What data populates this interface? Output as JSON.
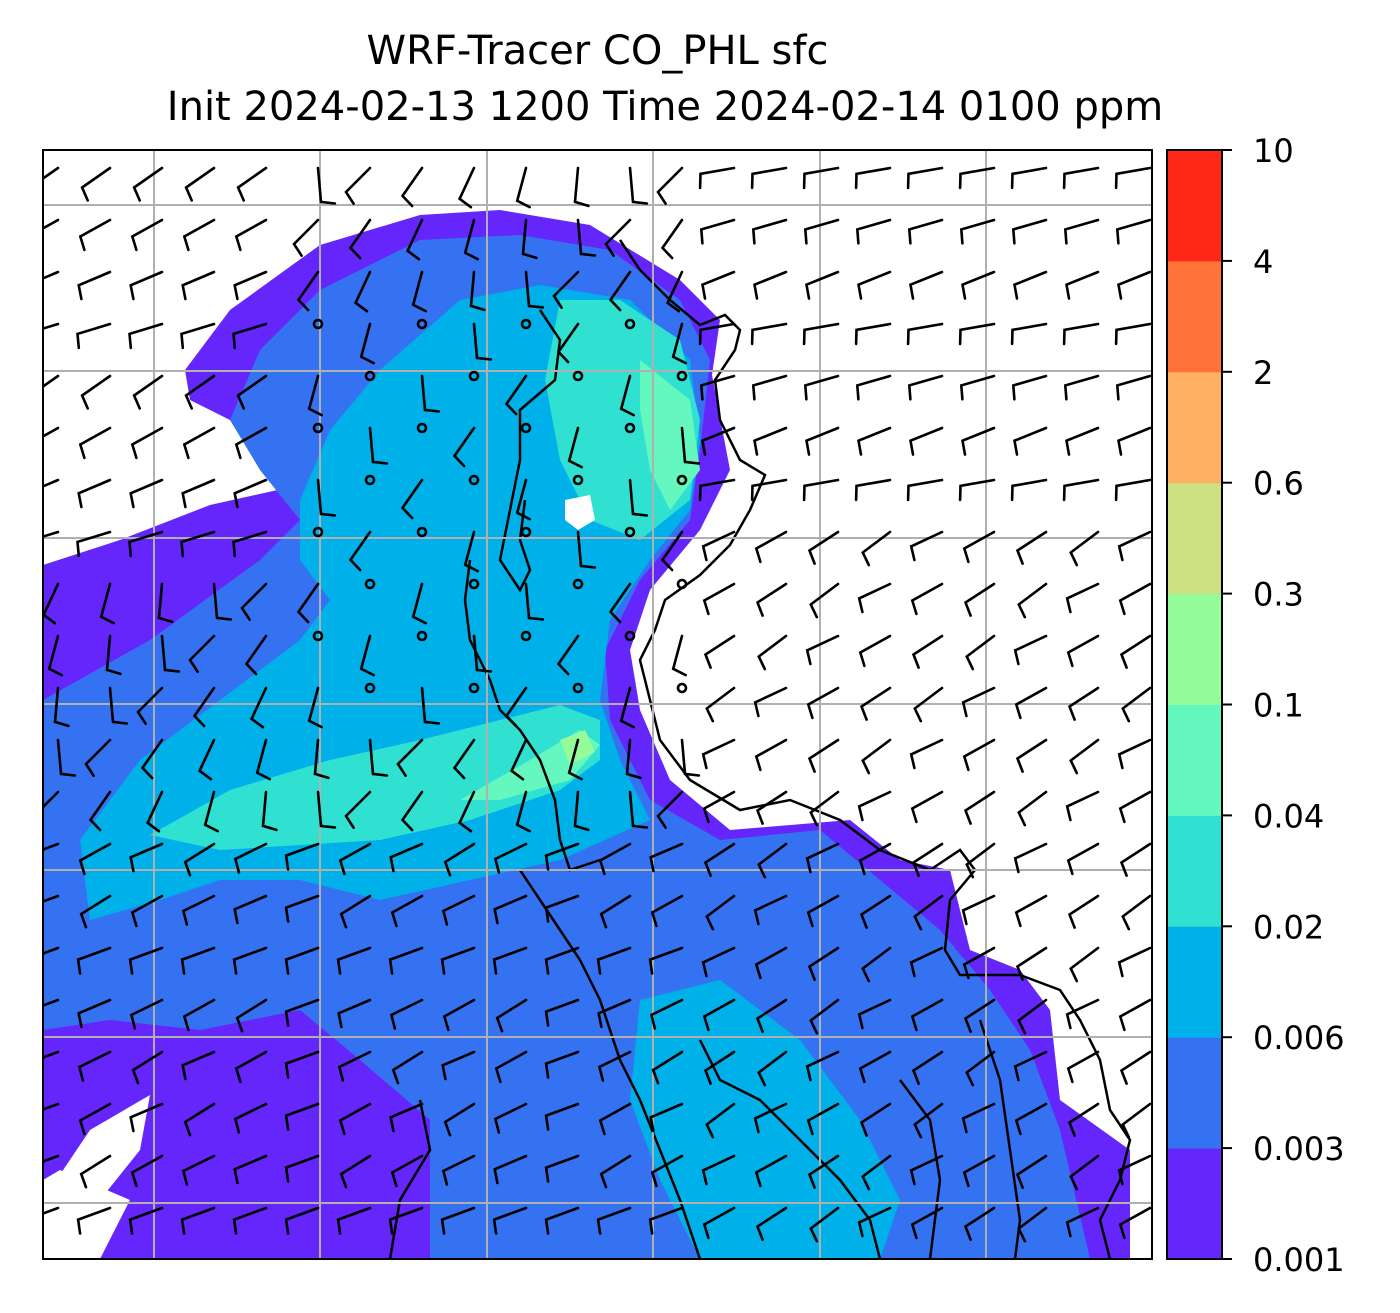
{
  "title": {
    "line1": "WRF-Tracer CO_PHL sfc",
    "line2": "Init 2024-02-13 1200 Time 2024-02-14 0100 ppm"
  },
  "chart_data": {
    "type": "heatmap",
    "variable": "CO_PHL",
    "units": "ppm",
    "grid": true,
    "legend_placement": "right",
    "colorbar": {
      "levels": [
        "0.001",
        "0.003",
        "0.006",
        "0.02",
        "0.04",
        "0.1",
        "0.3",
        "0.6",
        "2",
        "4",
        "10"
      ],
      "colors": [
        "#6426fb",
        "#3572f2",
        "#00b0e8",
        "#30e0d0",
        "#64f8bf",
        "#95fb9b",
        "#cde082",
        "#ffb060",
        "#ff7238",
        "#ff2816"
      ]
    },
    "overlay": "wind barbs (black)"
  }
}
